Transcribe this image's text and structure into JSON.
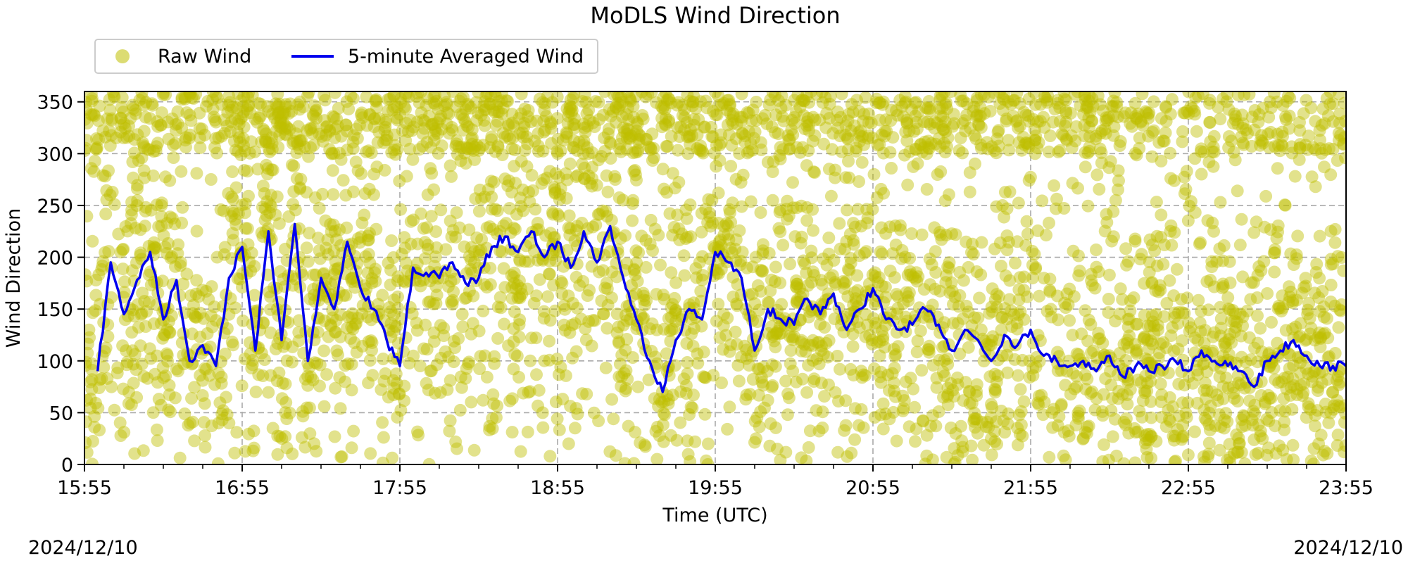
{
  "chart_data": {
    "type": "scatter",
    "title": "MoDLS Wind Direction",
    "xlabel": "Time (UTC)",
    "ylabel": "Wind Direction",
    "x_ticks": [
      "15:55",
      "16:55",
      "17:55",
      "18:55",
      "19:55",
      "20:55",
      "21:55",
      "22:55",
      "23:55"
    ],
    "x_range_hours": [
      15.9167,
      23.9167
    ],
    "ylim": [
      0,
      360
    ],
    "y_ticks": [
      0,
      50,
      100,
      150,
      200,
      250,
      300,
      350
    ],
    "grid": true,
    "legend_position": "top-left",
    "start_date": "2024/12/10",
    "end_date": "2024/12/10",
    "series": [
      {
        "name": "Raw Wind",
        "kind": "scatter",
        "color": "#bfbf00",
        "note": "Dense cloud of raw wind direction readings spanning 0–360 degrees across the whole period"
      },
      {
        "name": "5-minute Averaged Wind",
        "kind": "line",
        "color": "#0000ee",
        "x": [
          "16:00",
          "16:05",
          "16:10",
          "16:15",
          "16:20",
          "16:25",
          "16:30",
          "16:35",
          "16:40",
          "16:45",
          "16:50",
          "16:55",
          "17:00",
          "17:05",
          "17:10",
          "17:15",
          "17:20",
          "17:25",
          "17:30",
          "17:35",
          "17:40",
          "17:45",
          "17:50",
          "17:55",
          "18:00",
          "18:05",
          "18:10",
          "18:15",
          "18:20",
          "18:25",
          "18:30",
          "18:35",
          "18:40",
          "18:45",
          "18:50",
          "18:55",
          "19:00",
          "19:05",
          "19:10",
          "19:15",
          "19:20",
          "19:25",
          "19:30",
          "19:35",
          "19:40",
          "19:45",
          "19:50",
          "19:55",
          "20:00",
          "20:05",
          "20:10",
          "20:15",
          "20:20",
          "20:25",
          "20:30",
          "20:35",
          "20:40",
          "20:45",
          "20:50",
          "20:55",
          "21:00",
          "21:05",
          "21:10",
          "21:15",
          "21:20",
          "21:25",
          "21:30",
          "21:35",
          "21:40",
          "21:45",
          "21:50",
          "21:55",
          "22:00",
          "22:05",
          "22:10",
          "22:15",
          "22:20",
          "22:25",
          "22:30",
          "22:35",
          "22:40",
          "22:45",
          "22:50",
          "22:55",
          "23:00",
          "23:05",
          "23:10",
          "23:15",
          "23:20",
          "23:25",
          "23:30",
          "23:35",
          "23:40",
          "23:45",
          "23:50",
          "23:55"
        ],
        "values": [
          90,
          195,
          145,
          178,
          205,
          140,
          178,
          100,
          115,
          95,
          180,
          210,
          110,
          225,
          120,
          232,
          100,
          180,
          150,
          215,
          170,
          150,
          120,
          95,
          190,
          185,
          180,
          195,
          175,
          180,
          210,
          220,
          205,
          225,
          200,
          215,
          190,
          225,
          195,
          230,
          180,
          140,
          100,
          70,
          120,
          150,
          140,
          205,
          195,
          180,
          110,
          150,
          140,
          135,
          160,
          145,
          165,
          130,
          150,
          170,
          140,
          130,
          135,
          150,
          135,
          110,
          130,
          120,
          100,
          125,
          115,
          130,
          105,
          100,
          95,
          100,
          90,
          105,
          85,
          95,
          90,
          95,
          100,
          90,
          110,
          100,
          95,
          90,
          75,
          100,
          110,
          120,
          105,
          95,
          95,
          95
        ]
      }
    ]
  }
}
